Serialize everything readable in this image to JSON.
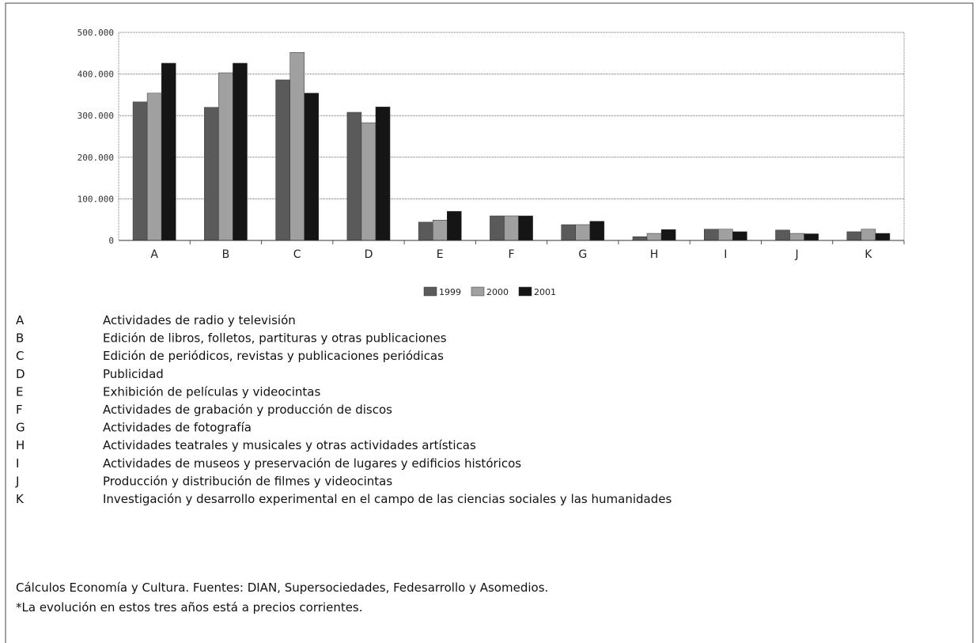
{
  "chart_data": {
    "type": "bar",
    "categories": [
      "A",
      "B",
      "C",
      "D",
      "E",
      "F",
      "G",
      "H",
      "I",
      "J",
      "K"
    ],
    "series": [
      {
        "name": "1999",
        "color": "#5a5a5a",
        "values": [
          333000,
          320000,
          386000,
          308000,
          44000,
          59000,
          38000,
          9000,
          27000,
          25000,
          21000
        ]
      },
      {
        "name": "2000",
        "color": "#a0a0a0",
        "values": [
          354000,
          403000,
          452000,
          283000,
          49000,
          59000,
          38000,
          17000,
          27000,
          17000,
          27000
        ]
      },
      {
        "name": "2001",
        "color": "#151515",
        "values": [
          426000,
          426000,
          354000,
          321000,
          70000,
          59000,
          46000,
          26000,
          21000,
          16000,
          17000
        ]
      }
    ],
    "ylim": [
      0,
      500000
    ],
    "yticks": [
      {
        "value": 0,
        "label": "0"
      },
      {
        "value": 100000,
        "label": "100.000"
      },
      {
        "value": 200000,
        "label": "200.000"
      },
      {
        "value": 300000,
        "label": "300.000"
      },
      {
        "value": 400000,
        "label": "400.000"
      },
      {
        "value": 500000,
        "label": "500.000"
      }
    ],
    "grid": true,
    "legend": "bottom"
  },
  "descriptions": [
    {
      "letter": "A",
      "text": "Actividades de radio y televisión"
    },
    {
      "letter": "B",
      "text": "Edición de libros, folletos, partituras y otras publicaciones"
    },
    {
      "letter": "C",
      "text": "Edición de periódicos, revistas y publicaciones periódicas"
    },
    {
      "letter": "D",
      "text": "Publicidad"
    },
    {
      "letter": "E",
      "text": "Exhibición de películas y videocintas"
    },
    {
      "letter": "F",
      "text": "Actividades de grabación y producción de discos"
    },
    {
      "letter": "G",
      "text": "Actividades de fotografía"
    },
    {
      "letter": "H",
      "text": "Actividades teatrales y musicales y otras actividades artísticas"
    },
    {
      "letter": "I",
      "text": "Actividades de museos y preservación de lugares y edificios históricos"
    },
    {
      "letter": "J",
      "text": "Producción y distribución de filmes y videocintas"
    },
    {
      "letter": "K",
      "text": "Investigación y desarrollo experimental en el campo de las ciencias sociales y las humanidades"
    }
  ],
  "source": "Cálculos Economía y Cultura. Fuentes: DIAN, Supersociedades, Fedesarrollo y Asomedios.",
  "note": "*La evolución en estos tres años está a precios corrientes."
}
